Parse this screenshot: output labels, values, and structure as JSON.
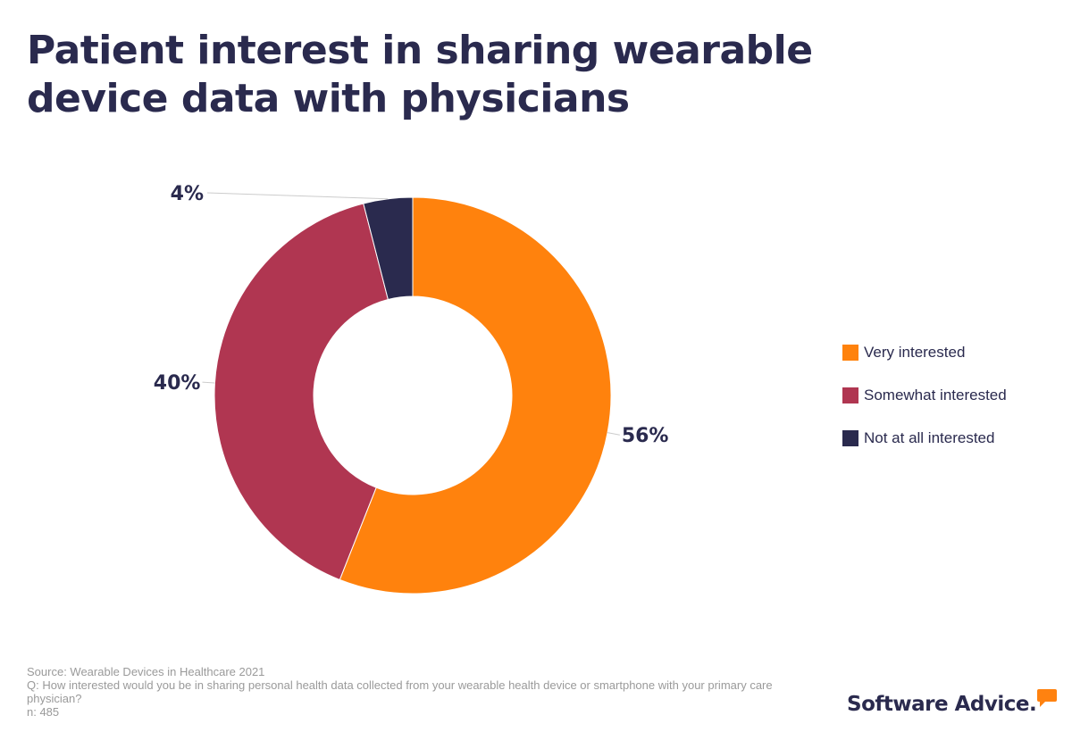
{
  "chart_data": {
    "type": "pie",
    "title": "Patient interest in sharing wearable device data with physicians",
    "series": [
      {
        "name": "Very interested",
        "value": 56,
        "label": "56%",
        "color": "#ff820d"
      },
      {
        "name": "Somewhat interested",
        "value": 40,
        "label": "40%",
        "color": "#b03651"
      },
      {
        "name": "Not at all interested",
        "value": 4,
        "label": "4%",
        "color": "#2a2a4e"
      }
    ],
    "legend": "right",
    "donut": true,
    "start": "top",
    "direction": "clockwise"
  },
  "footer": {
    "source": "Source: Wearable Devices in Healthcare 2021",
    "question": "Q: How interested would you be in sharing personal health data collected from your wearable health device or smartphone with your primary care physician?",
    "n": "n: 485"
  },
  "logo": {
    "text": "Software Advice.",
    "icon": "speech-bubble-icon",
    "icon_color": "#ff8210"
  }
}
